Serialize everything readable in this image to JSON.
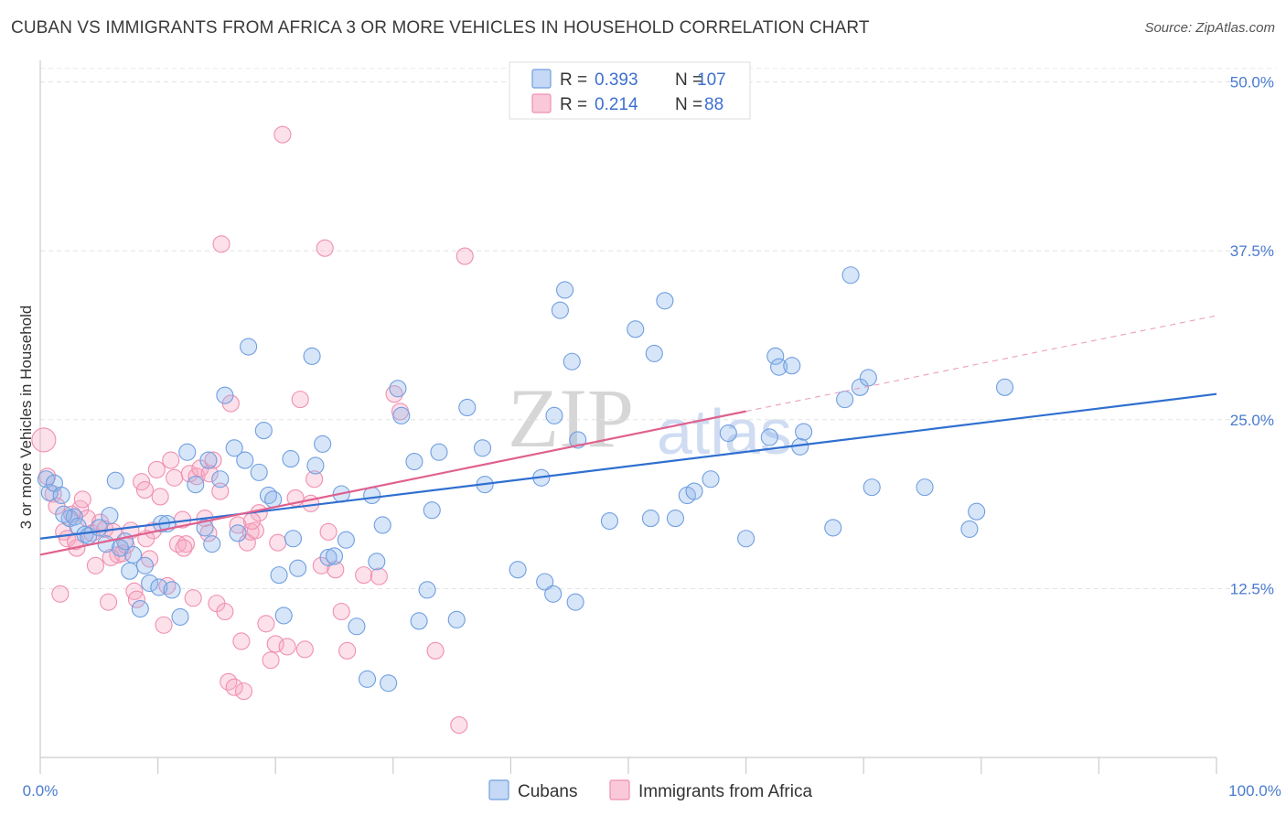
{
  "title": "CUBAN VS IMMIGRANTS FROM AFRICA 3 OR MORE VEHICLES IN HOUSEHOLD CORRELATION CHART",
  "source": "Source: ZipAtlas.com",
  "colors": {
    "cubans": "#6f9fe0",
    "africa": "#f08fb0",
    "cubans_line": "#2f6fd0",
    "africa_line": "#e0608e",
    "tick_text": "#4a7bd0"
  },
  "legend": {
    "rows": [
      {
        "r_label": "R =",
        "r_value": "0.393",
        "n_label": "N =",
        "n_value": "107"
      },
      {
        "r_label": "R =",
        "r_value": "0.214",
        "n_label": "N =",
        "n_value": "88"
      }
    ]
  },
  "watermark": {
    "part1": "ZIP",
    "part2": "atlas"
  },
  "chart_data": {
    "type": "scatter",
    "xlabel": "",
    "ylabel": "3 or more Vehicles in Household",
    "xlim": [
      0,
      100
    ],
    "ylim": [
      0,
      52
    ],
    "x_tick_labels": [
      "0.0%",
      "100.0%"
    ],
    "y_ticks": [
      12.5,
      25.0,
      37.5,
      50.0
    ],
    "y_tick_labels": [
      "12.5%",
      "25.0%",
      "37.5%",
      "50.0%"
    ],
    "grid": true,
    "legend_position": "top-center",
    "series": [
      {
        "name": "Cubans",
        "trend": {
          "x0": 0,
          "y0": 16.2,
          "x1": 100,
          "y1": 26.9,
          "dashed_from": null
        },
        "points": [
          [
            0.5,
            20.6
          ],
          [
            0.8,
            19.6
          ],
          [
            1.2,
            20.3
          ],
          [
            1.8,
            19.4
          ],
          [
            2.5,
            17.7
          ],
          [
            2.9,
            17.8
          ],
          [
            3.2,
            17.1
          ],
          [
            3.8,
            16.5
          ],
          [
            4.1,
            16.4
          ],
          [
            5.0,
            17.0
          ],
          [
            5.6,
            15.8
          ],
          [
            5.9,
            17.9
          ],
          [
            6.4,
            20.5
          ],
          [
            7.2,
            16.0
          ],
          [
            7.6,
            13.8
          ],
          [
            7.9,
            15.0
          ],
          [
            8.5,
            11.0
          ],
          [
            8.9,
            14.2
          ],
          [
            9.3,
            12.9
          ],
          [
            10.1,
            12.6
          ],
          [
            10.3,
            17.3
          ],
          [
            10.8,
            17.3
          ],
          [
            11.2,
            12.4
          ],
          [
            11.9,
            10.4
          ],
          [
            12.5,
            22.6
          ],
          [
            13.2,
            20.2
          ],
          [
            14.0,
            17.0
          ],
          [
            14.3,
            22.0
          ],
          [
            14.6,
            15.8
          ],
          [
            15.3,
            20.6
          ],
          [
            15.7,
            26.8
          ],
          [
            16.5,
            22.9
          ],
          [
            16.8,
            16.6
          ],
          [
            17.4,
            22.0
          ],
          [
            17.7,
            30.4
          ],
          [
            18.6,
            21.1
          ],
          [
            19.0,
            24.2
          ],
          [
            19.4,
            19.4
          ],
          [
            19.8,
            19.1
          ],
          [
            20.3,
            13.5
          ],
          [
            20.7,
            10.5
          ],
          [
            21.3,
            22.1
          ],
          [
            21.5,
            16.2
          ],
          [
            21.9,
            14.0
          ],
          [
            23.1,
            29.7
          ],
          [
            23.4,
            21.6
          ],
          [
            24.0,
            23.2
          ],
          [
            24.5,
            14.8
          ],
          [
            25.0,
            14.9
          ],
          [
            25.6,
            19.5
          ],
          [
            26.0,
            16.1
          ],
          [
            26.9,
            9.7
          ],
          [
            27.8,
            5.8
          ],
          [
            28.2,
            19.4
          ],
          [
            28.6,
            14.5
          ],
          [
            29.1,
            17.2
          ],
          [
            29.6,
            5.5
          ],
          [
            30.4,
            27.3
          ],
          [
            30.7,
            25.3
          ],
          [
            31.8,
            21.9
          ],
          [
            32.2,
            10.1
          ],
          [
            32.9,
            12.4
          ],
          [
            33.3,
            18.3
          ],
          [
            33.9,
            22.6
          ],
          [
            35.4,
            10.2
          ],
          [
            36.3,
            25.9
          ],
          [
            37.6,
            22.9
          ],
          [
            37.8,
            20.2
          ],
          [
            40.6,
            13.9
          ],
          [
            42.6,
            20.7
          ],
          [
            42.9,
            13.0
          ],
          [
            43.6,
            12.1
          ],
          [
            43.7,
            25.3
          ],
          [
            44.2,
            33.1
          ],
          [
            44.6,
            34.6
          ],
          [
            45.2,
            29.3
          ],
          [
            45.5,
            11.5
          ],
          [
            45.7,
            23.5
          ],
          [
            48.4,
            17.5
          ],
          [
            50.6,
            31.7
          ],
          [
            51.9,
            17.7
          ],
          [
            52.2,
            29.9
          ],
          [
            53.1,
            33.8
          ],
          [
            54.0,
            17.7
          ],
          [
            55.0,
            19.4
          ],
          [
            55.6,
            19.7
          ],
          [
            57.0,
            20.6
          ],
          [
            58.5,
            24.0
          ],
          [
            60.0,
            16.2
          ],
          [
            62.0,
            23.7
          ],
          [
            62.5,
            29.7
          ],
          [
            62.8,
            28.9
          ],
          [
            63.9,
            29.0
          ],
          [
            64.6,
            23.0
          ],
          [
            64.9,
            24.1
          ],
          [
            67.4,
            17.0
          ],
          [
            68.4,
            26.5
          ],
          [
            68.9,
            35.7
          ],
          [
            69.7,
            27.4
          ],
          [
            70.4,
            28.1
          ],
          [
            70.7,
            20.0
          ],
          [
            75.2,
            20.0
          ],
          [
            79.0,
            16.9
          ],
          [
            79.6,
            18.2
          ],
          [
            82.0,
            27.4
          ],
          [
            2.0,
            18.0
          ],
          [
            6.8,
            15.5
          ]
        ]
      },
      {
        "name": "Immigrants from Africa",
        "trend": {
          "x0": 0,
          "y0": 15.0,
          "x1": 100,
          "y1": 32.7,
          "dashed_from": 60
        },
        "points": [
          [
            0.3,
            23.5
          ],
          [
            0.6,
            20.8
          ],
          [
            1.1,
            19.5
          ],
          [
            1.4,
            18.6
          ],
          [
            1.7,
            12.1
          ],
          [
            2.0,
            16.7
          ],
          [
            2.3,
            16.2
          ],
          [
            2.7,
            18.0
          ],
          [
            3.1,
            15.5
          ],
          [
            3.4,
            18.4
          ],
          [
            3.6,
            19.1
          ],
          [
            4.0,
            17.7
          ],
          [
            4.4,
            16.6
          ],
          [
            4.7,
            14.2
          ],
          [
            5.1,
            17.4
          ],
          [
            5.5,
            16.9
          ],
          [
            5.8,
            11.5
          ],
          [
            6.2,
            16.7
          ],
          [
            6.6,
            15.0
          ],
          [
            7.0,
            15.1
          ],
          [
            7.3,
            15.7
          ],
          [
            7.7,
            16.8
          ],
          [
            8.0,
            12.3
          ],
          [
            8.2,
            11.7
          ],
          [
            8.6,
            20.4
          ],
          [
            8.9,
            19.8
          ],
          [
            9.3,
            14.7
          ],
          [
            9.6,
            16.8
          ],
          [
            9.9,
            21.3
          ],
          [
            10.2,
            19.3
          ],
          [
            10.5,
            9.8
          ],
          [
            10.8,
            12.7
          ],
          [
            11.1,
            22.0
          ],
          [
            11.4,
            20.7
          ],
          [
            11.7,
            15.8
          ],
          [
            12.1,
            17.6
          ],
          [
            12.4,
            15.8
          ],
          [
            12.7,
            21.0
          ],
          [
            13.0,
            11.8
          ],
          [
            13.3,
            20.8
          ],
          [
            13.6,
            21.4
          ],
          [
            14.0,
            17.7
          ],
          [
            14.3,
            16.6
          ],
          [
            14.7,
            22.0
          ],
          [
            15.0,
            11.4
          ],
          [
            15.3,
            19.7
          ],
          [
            15.4,
            38.0
          ],
          [
            15.7,
            10.8
          ],
          [
            16.0,
            5.6
          ],
          [
            16.2,
            26.2
          ],
          [
            16.5,
            5.2
          ],
          [
            16.8,
            17.2
          ],
          [
            17.1,
            8.6
          ],
          [
            17.3,
            4.9
          ],
          [
            17.6,
            15.9
          ],
          [
            17.9,
            16.7
          ],
          [
            18.3,
            16.8
          ],
          [
            18.6,
            18.1
          ],
          [
            19.2,
            9.9
          ],
          [
            19.6,
            7.2
          ],
          [
            20.0,
            8.4
          ],
          [
            20.2,
            15.9
          ],
          [
            20.6,
            46.1
          ],
          [
            21.0,
            8.2
          ],
          [
            21.7,
            19.2
          ],
          [
            22.1,
            26.5
          ],
          [
            22.5,
            8.0
          ],
          [
            23.0,
            18.8
          ],
          [
            23.3,
            20.6
          ],
          [
            23.9,
            14.2
          ],
          [
            24.2,
            37.7
          ],
          [
            24.5,
            16.7
          ],
          [
            25.1,
            13.9
          ],
          [
            25.6,
            10.8
          ],
          [
            26.1,
            7.9
          ],
          [
            27.5,
            13.5
          ],
          [
            28.8,
            13.4
          ],
          [
            30.1,
            26.9
          ],
          [
            30.6,
            25.6
          ],
          [
            33.6,
            7.9
          ],
          [
            35.6,
            2.4
          ],
          [
            36.1,
            37.1
          ],
          [
            14.4,
            21.0
          ],
          [
            12.2,
            15.5
          ],
          [
            6.0,
            14.8
          ],
          [
            9.0,
            16.2
          ],
          [
            18.0,
            17.5
          ],
          [
            3.0,
            16.0
          ]
        ]
      }
    ]
  },
  "bottom_legend": {
    "items": [
      "Cubans",
      "Immigrants from Africa"
    ]
  }
}
